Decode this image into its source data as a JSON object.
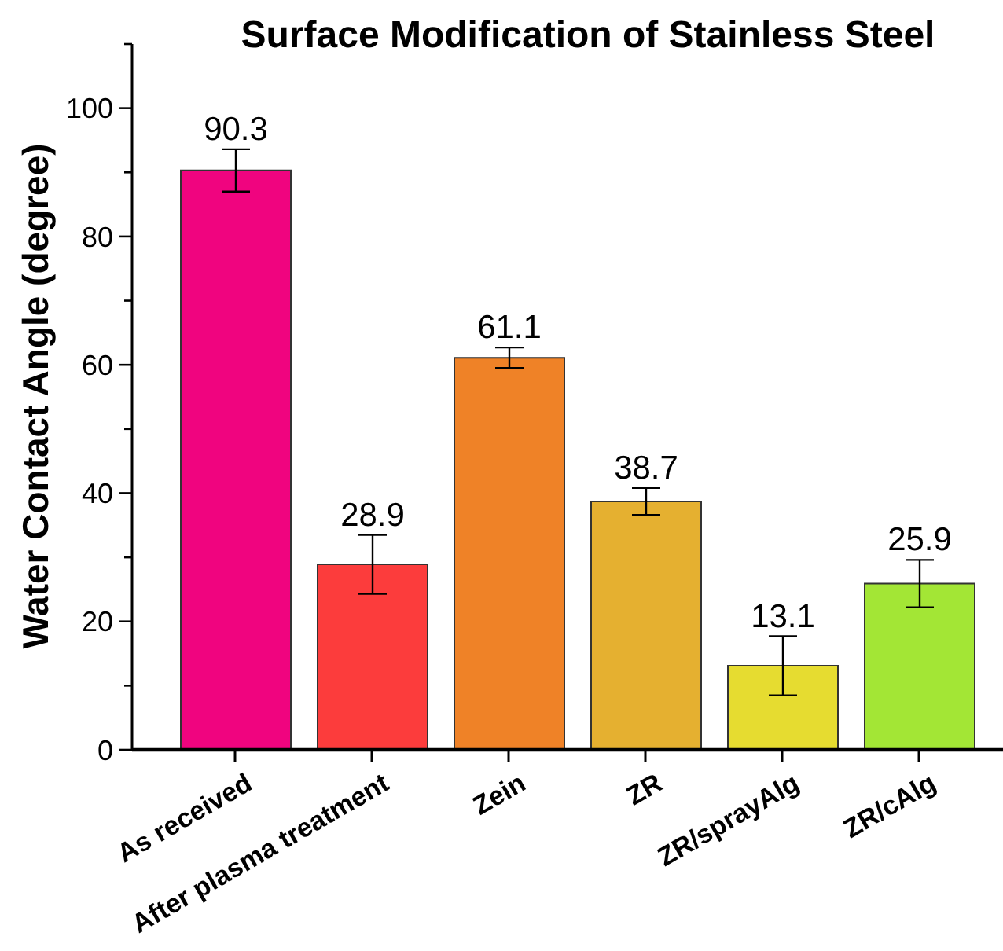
{
  "chart_data": {
    "type": "bar",
    "title": "Surface Modification of Stainless Steel",
    "ylabel": "Water Contact Angle (degree)",
    "categories": [
      "As received",
      "After plasma treatment",
      "Zein",
      "ZR",
      "ZR/sprayAlg",
      "ZR/cAlg"
    ],
    "values": [
      90.3,
      28.9,
      61.1,
      38.7,
      13.1,
      25.9
    ],
    "colors": [
      "#f0047f",
      "#fc3c3c",
      "#ef8227",
      "#e5b030",
      "#e6dc30",
      "#a3e635"
    ],
    "errors": [
      3.3,
      4.6,
      1.6,
      2.1,
      4.6,
      3.7
    ],
    "ylim": [
      0,
      110
    ],
    "yticks": [
      0,
      {
        "value": 10,
        "label": null
      },
      20,
      {
        "value": 30,
        "label": null
      },
      40,
      {
        "value": 50,
        "label": null
      },
      60,
      {
        "value": 70,
        "label": null
      },
      80,
      {
        "value": 90,
        "label": null
      },
      100,
      {
        "value": 110,
        "label": null
      }
    ],
    "data_labels": true
  }
}
